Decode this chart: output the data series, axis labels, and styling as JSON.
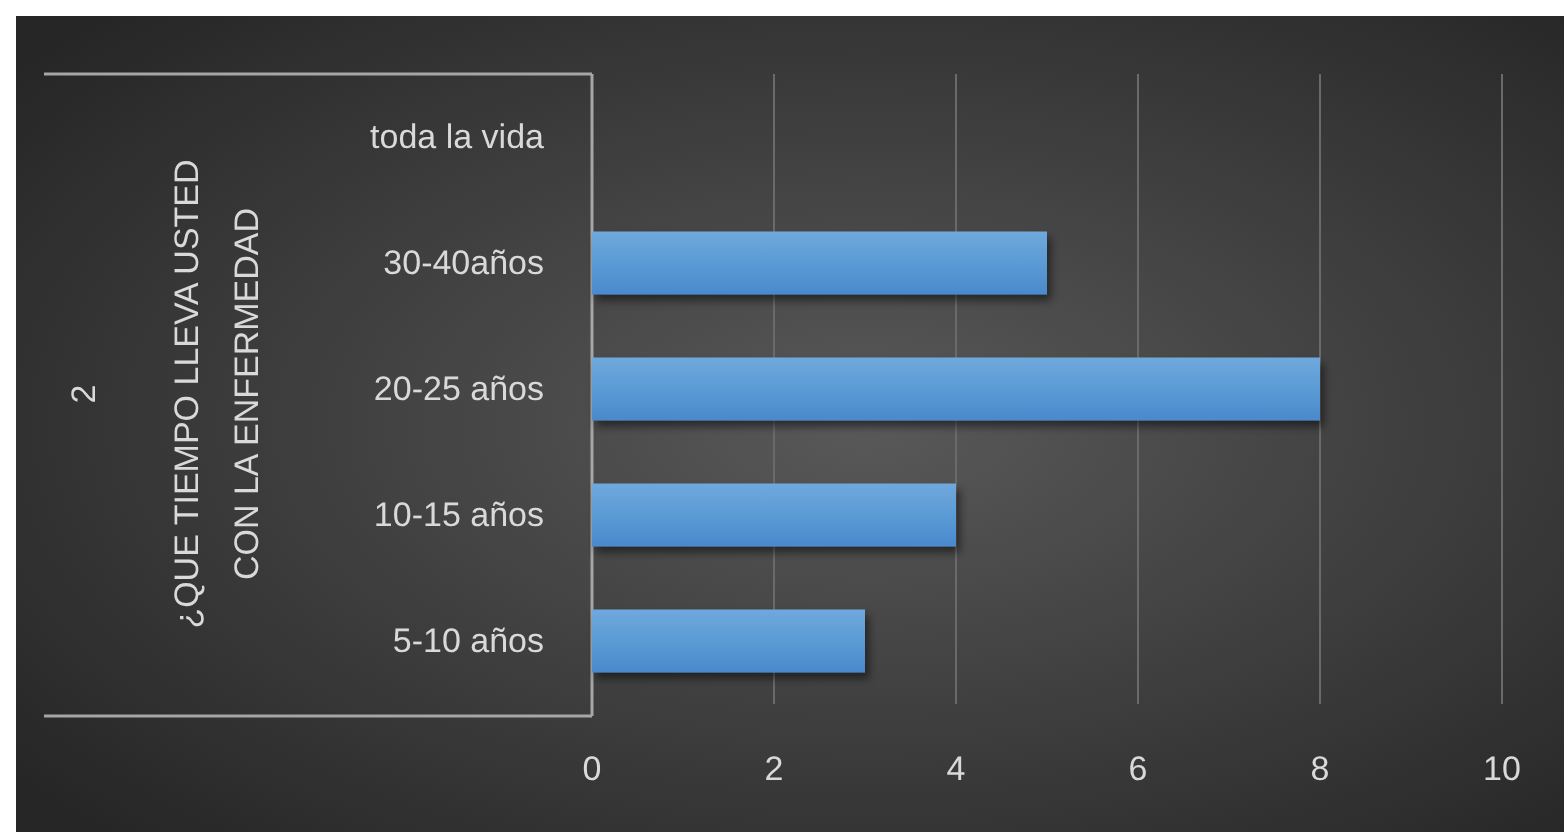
{
  "chart_data": {
    "type": "bar",
    "orientation": "horizontal",
    "categories": [
      "toda la vida",
      "30-40años",
      "20-25 años",
      "10-15 años",
      "5-10 años"
    ],
    "values": [
      null,
      5,
      8,
      4,
      3
    ],
    "color": "#5b9bd5",
    "xlim": [
      0,
      10
    ],
    "xticks": [
      0,
      2,
      4,
      6,
      8,
      10
    ],
    "grid": "x",
    "ylabel": "¿QUE TIEMPO LLEVA USTED CON LA ENFERMEDAD",
    "annotations": [
      "2"
    ]
  }
}
